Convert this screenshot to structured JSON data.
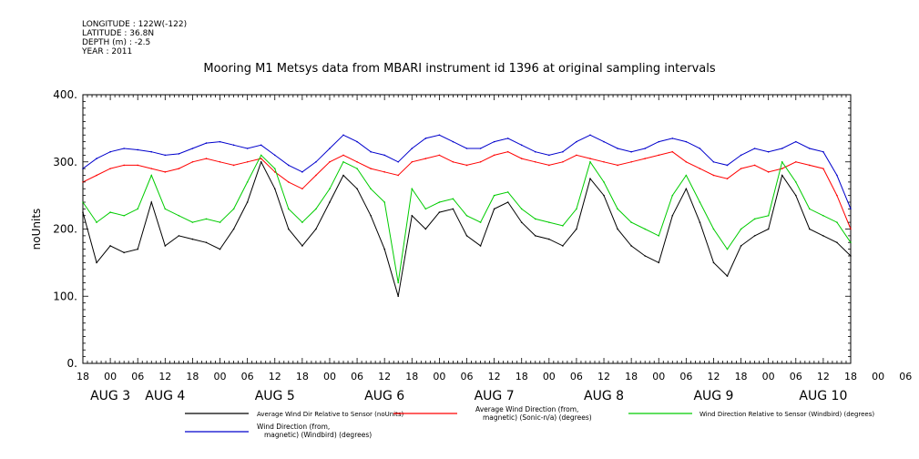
{
  "header": {
    "longitude": "LONGITUDE : 122W(-122)",
    "latitude": "LATITUDE : 36.8N",
    "depth": "DEPTH (m) : -2.5",
    "year": "YEAR : 2011"
  },
  "chart_data": {
    "type": "line",
    "title": "Mooring M1 Metsys data from MBARI instrument id 1396 at original sampling intervals",
    "ylabel": "noUnits",
    "xlabel": "",
    "ylim": [
      0,
      400
    ],
    "xlim_hours": [
      0,
      168
    ],
    "y_ticks": [
      "0.",
      "100.",
      "200.",
      "300.",
      "400."
    ],
    "x_hour_labels": [
      "18",
      "00",
      "06",
      "12",
      "18",
      "00",
      "06",
      "12",
      "18",
      "00",
      "06",
      "12",
      "18",
      "00",
      "06",
      "12",
      "18",
      "00",
      "06",
      "12",
      "18",
      "00",
      "06",
      "12",
      "18",
      "00",
      "06",
      "12",
      "18",
      "00",
      "06",
      "12",
      "18"
    ],
    "date_labels": [
      {
        "text": "AUG  3",
        "hour": 6
      },
      {
        "text": "AUG  4",
        "hour": 18
      },
      {
        "text": "AUG  5",
        "hour": 42
      },
      {
        "text": "AUG  6",
        "hour": 66
      },
      {
        "text": "AUG  7",
        "hour": 90
      },
      {
        "text": "AUG  8",
        "hour": 114
      },
      {
        "text": "AUG  9",
        "hour": 138
      },
      {
        "text": "AUG 10",
        "hour": 162
      }
    ],
    "series": [
      {
        "name": "Average Wind Dir Relative to Sensor (noUnits)",
        "color": "#000000",
        "x": [
          0,
          3,
          6,
          9,
          12,
          15,
          18,
          21,
          24,
          27,
          30,
          33,
          36,
          39,
          42,
          45,
          48,
          51,
          54,
          57,
          60,
          63,
          66,
          69,
          72,
          75,
          78,
          81,
          84,
          87,
          90,
          93,
          96,
          99,
          102,
          105,
          108,
          111,
          114,
          117,
          120,
          123,
          126,
          129,
          132,
          135,
          138,
          141,
          144,
          147,
          150,
          153,
          156,
          159,
          162,
          165,
          168
        ],
        "y": [
          225,
          150,
          175,
          165,
          170,
          240,
          175,
          190,
          185,
          180,
          170,
          200,
          240,
          300,
          260,
          200,
          175,
          200,
          240,
          280,
          260,
          220,
          170,
          100,
          220,
          200,
          225,
          230,
          190,
          175,
          230,
          240,
          210,
          190,
          185,
          175,
          200,
          275,
          250,
          200,
          175,
          160,
          150,
          220,
          260,
          210,
          150,
          130,
          175,
          190,
          200,
          280,
          250,
          200,
          190,
          180,
          160
        ]
      },
      {
        "name": "Average Wind Direction (from, magnetic) (Sonic-n/a) (degrees)",
        "color": "#ff0000",
        "x": [
          0,
          3,
          6,
          9,
          12,
          15,
          18,
          21,
          24,
          27,
          30,
          33,
          36,
          39,
          42,
          45,
          48,
          51,
          54,
          57,
          60,
          63,
          66,
          69,
          72,
          75,
          78,
          81,
          84,
          87,
          90,
          93,
          96,
          99,
          102,
          105,
          108,
          111,
          114,
          117,
          120,
          123,
          126,
          129,
          132,
          135,
          138,
          141,
          144,
          147,
          150,
          153,
          156,
          159,
          162,
          165,
          168
        ],
        "y": [
          270,
          280,
          290,
          295,
          295,
          290,
          285,
          290,
          300,
          305,
          300,
          295,
          300,
          305,
          285,
          270,
          260,
          280,
          300,
          310,
          300,
          290,
          285,
          280,
          300,
          305,
          310,
          300,
          295,
          300,
          310,
          315,
          305,
          300,
          295,
          300,
          310,
          305,
          300,
          295,
          300,
          305,
          310,
          315,
          300,
          290,
          280,
          275,
          290,
          295,
          285,
          290,
          300,
          295,
          290,
          250,
          200
        ]
      },
      {
        "name": "Wind Direction Relative to Sensor (Windbird) (degrees)",
        "color": "#00cc00",
        "x": [
          0,
          3,
          6,
          9,
          12,
          15,
          18,
          21,
          24,
          27,
          30,
          33,
          36,
          39,
          42,
          45,
          48,
          51,
          54,
          57,
          60,
          63,
          66,
          69,
          72,
          75,
          78,
          81,
          84,
          87,
          90,
          93,
          96,
          99,
          102,
          105,
          108,
          111,
          114,
          117,
          120,
          123,
          126,
          129,
          132,
          135,
          138,
          141,
          144,
          147,
          150,
          153,
          156,
          159,
          162,
          165,
          168
        ],
        "y": [
          240,
          210,
          225,
          220,
          230,
          280,
          230,
          220,
          210,
          215,
          210,
          230,
          270,
          310,
          290,
          230,
          210,
          230,
          260,
          300,
          290,
          260,
          240,
          120,
          260,
          230,
          240,
          245,
          220,
          210,
          250,
          255,
          230,
          215,
          210,
          205,
          230,
          300,
          270,
          230,
          210,
          200,
          190,
          250,
          280,
          240,
          200,
          170,
          200,
          215,
          220,
          300,
          270,
          230,
          220,
          210,
          180
        ]
      },
      {
        "name": "Wind Direction (from, magnetic) (Windbird) (degrees)",
        "color": "#0000cc",
        "x": [
          0,
          3,
          6,
          9,
          12,
          15,
          18,
          21,
          24,
          27,
          30,
          33,
          36,
          39,
          42,
          45,
          48,
          51,
          54,
          57,
          60,
          63,
          66,
          69,
          72,
          75,
          78,
          81,
          84,
          87,
          90,
          93,
          96,
          99,
          102,
          105,
          108,
          111,
          114,
          117,
          120,
          123,
          126,
          129,
          132,
          135,
          138,
          141,
          144,
          147,
          150,
          153,
          156,
          159,
          162,
          165,
          168
        ],
        "y": [
          290,
          305,
          315,
          320,
          318,
          315,
          310,
          312,
          320,
          328,
          330,
          325,
          320,
          325,
          310,
          295,
          285,
          300,
          320,
          340,
          330,
          315,
          310,
          300,
          320,
          335,
          340,
          330,
          320,
          320,
          330,
          335,
          325,
          315,
          310,
          315,
          330,
          340,
          330,
          320,
          315,
          320,
          330,
          335,
          330,
          320,
          300,
          295,
          310,
          320,
          315,
          320,
          330,
          320,
          315,
          280,
          230
        ]
      }
    ],
    "legend": [
      {
        "label": "Average Wind Dir Relative to Sensor (noUnits)",
        "color": "#000000"
      },
      {
        "label_line1": "Average Wind Direction (from,",
        "label_line2": "magnetic) (Sonic-n/a) (degrees)",
        "color": "#ff0000"
      },
      {
        "label": "Wind Direction Relative to Sensor (Windbird) (degrees)",
        "color": "#00cc00"
      },
      {
        "label_line1": "Wind Direction (from,",
        "label_line2": "magnetic) (Windbird) (degrees)",
        "color": "#0000cc"
      }
    ]
  }
}
